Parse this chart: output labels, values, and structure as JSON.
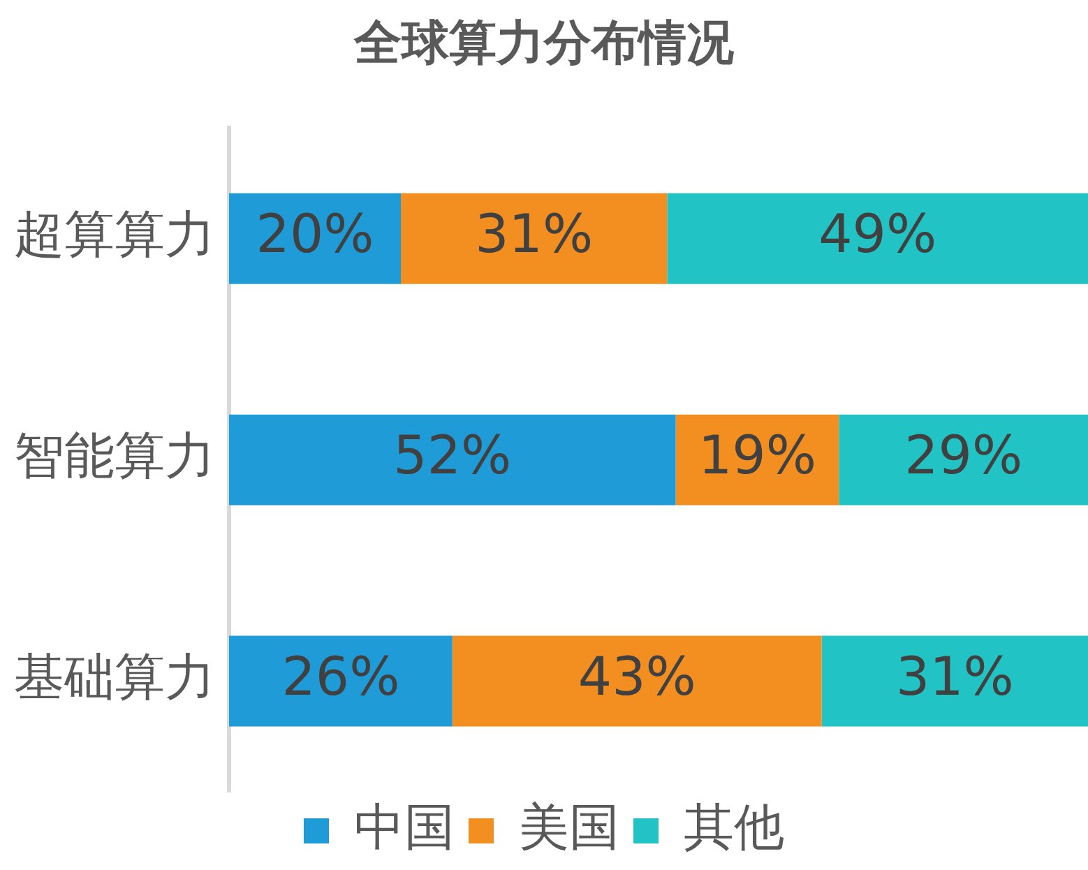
{
  "chart_data": {
    "type": "bar",
    "title": "全球算力分布情况",
    "orientation": "horizontal",
    "stacked": true,
    "categories": [
      "超算算力",
      "智能算力",
      "基础算力"
    ],
    "series": [
      {
        "name": "中国",
        "color": "#1f9bd7",
        "values": [
          20,
          52,
          26
        ],
        "value_labels": [
          "20%",
          "52%",
          "26%"
        ]
      },
      {
        "name": "美国",
        "color": "#f38f21",
        "values": [
          31,
          19,
          43
        ],
        "value_labels": [
          "31%",
          "19%",
          "43%"
        ]
      },
      {
        "name": "其他",
        "color": "#22c3c4",
        "values": [
          49,
          29,
          31
        ],
        "value_labels": [
          "49%",
          "29%",
          "31%"
        ]
      }
    ],
    "tick_labels": "y",
    "legend": "bottom"
  }
}
